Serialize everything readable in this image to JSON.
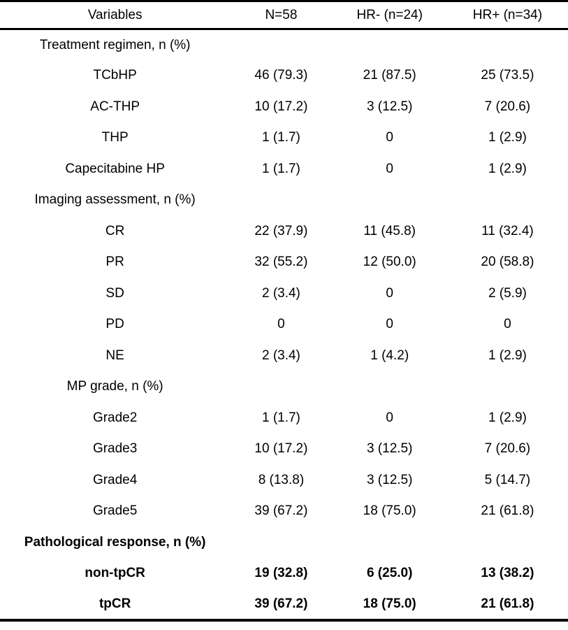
{
  "colors": {
    "background": "#ffffff",
    "text": "#000000",
    "rule": "#000000"
  },
  "table": {
    "columns": [
      "Variables",
      "N=58",
      "HR- (n=24)",
      "HR+ (n=34)"
    ],
    "rows": [
      {
        "label": "Treatment regimen, n (%)",
        "values": [
          "",
          "",
          ""
        ],
        "section": true,
        "bold": false
      },
      {
        "label": "TCbHP",
        "values": [
          "46 (79.3)",
          "21 (87.5)",
          "25 (73.5)"
        ],
        "section": false,
        "bold": false
      },
      {
        "label": "AC-THP",
        "values": [
          "10 (17.2)",
          "3 (12.5)",
          "7 (20.6)"
        ],
        "section": false,
        "bold": false
      },
      {
        "label": "THP",
        "values": [
          "1 (1.7)",
          "0",
          "1 (2.9)"
        ],
        "section": false,
        "bold": false
      },
      {
        "label": "Capecitabine HP",
        "values": [
          "1 (1.7)",
          "0",
          "1 (2.9)"
        ],
        "section": false,
        "bold": false
      },
      {
        "label": "Imaging assessment, n (%)",
        "values": [
          "",
          "",
          ""
        ],
        "section": true,
        "bold": false
      },
      {
        "label": "CR",
        "values": [
          "22 (37.9)",
          "11 (45.8)",
          "11 (32.4)"
        ],
        "section": false,
        "bold": false
      },
      {
        "label": "PR",
        "values": [
          "32 (55.2)",
          "12 (50.0)",
          "20 (58.8)"
        ],
        "section": false,
        "bold": false
      },
      {
        "label": "SD",
        "values": [
          "2 (3.4)",
          "0",
          "2 (5.9)"
        ],
        "section": false,
        "bold": false
      },
      {
        "label": "PD",
        "values": [
          "0",
          "0",
          "0"
        ],
        "section": false,
        "bold": false
      },
      {
        "label": "NE",
        "values": [
          "2 (3.4)",
          "1 (4.2)",
          "1 (2.9)"
        ],
        "section": false,
        "bold": false
      },
      {
        "label": "MP grade, n (%)",
        "values": [
          "",
          "",
          ""
        ],
        "section": true,
        "bold": false
      },
      {
        "label": "Grade2",
        "values": [
          "1 (1.7)",
          "0",
          "1 (2.9)"
        ],
        "section": false,
        "bold": false
      },
      {
        "label": "Grade3",
        "values": [
          "10 (17.2)",
          "3 (12.5)",
          "7 (20.6)"
        ],
        "section": false,
        "bold": false
      },
      {
        "label": "Grade4",
        "values": [
          "8 (13.8)",
          "3 (12.5)",
          "5 (14.7)"
        ],
        "section": false,
        "bold": false
      },
      {
        "label": "Grade5",
        "values": [
          "39 (67.2)",
          "18 (75.0)",
          "21 (61.8)"
        ],
        "section": false,
        "bold": false
      },
      {
        "label": "Pathological response, n (%)",
        "values": [
          "",
          "",
          ""
        ],
        "section": true,
        "bold": true
      },
      {
        "label": "non-tpCR",
        "values": [
          "19 (32.8)",
          "6 (25.0)",
          "13 (38.2)"
        ],
        "section": false,
        "bold": true
      },
      {
        "label": "tpCR",
        "values": [
          "39 (67.2)",
          "18 (75.0)",
          "21 (61.8)"
        ],
        "section": false,
        "bold": true
      }
    ]
  }
}
